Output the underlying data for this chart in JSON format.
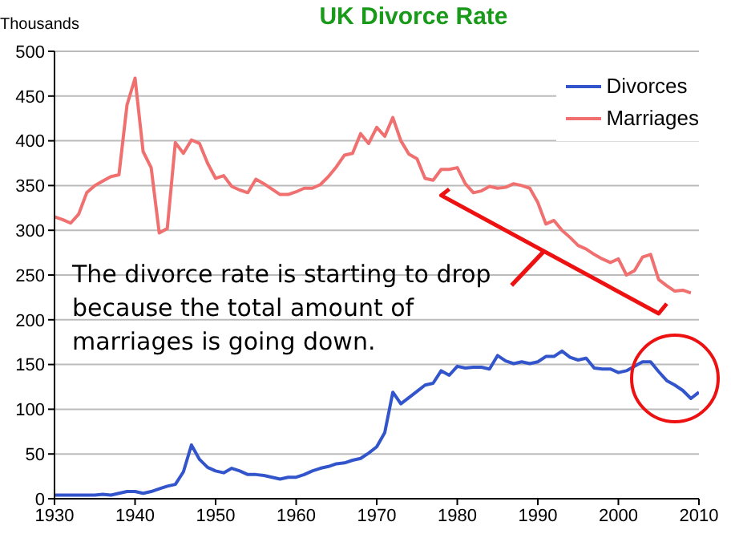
{
  "chart_data": {
    "type": "line",
    "title": "UK Divorce Rate",
    "ylabel": "Thousands",
    "xlim": [
      1930,
      2010
    ],
    "xticks": [
      1930,
      1940,
      1950,
      1960,
      1970,
      1980,
      1990,
      2000,
      2010
    ],
    "ylim": [
      0,
      500
    ],
    "yticks": [
      0,
      50,
      100,
      150,
      200,
      250,
      300,
      350,
      400,
      450,
      500
    ],
    "grid": "y",
    "legend": "top right",
    "marker": "none",
    "line_style": "solid",
    "annotations": [
      "The divorce rate is starting to drop because the total amount of marriages is going down."
    ],
    "series": [
      {
        "name": "Divorces",
        "color": "#3355cc",
        "x": [
          1930,
          1931,
          1932,
          1933,
          1934,
          1935,
          1936,
          1937,
          1938,
          1939,
          1940,
          1941,
          1942,
          1943,
          1944,
          1945,
          1946,
          1947,
          1948,
          1949,
          1950,
          1951,
          1952,
          1953,
          1954,
          1955,
          1956,
          1957,
          1958,
          1959,
          1960,
          1961,
          1962,
          1963,
          1964,
          1965,
          1966,
          1967,
          1968,
          1969,
          1970,
          1971,
          1972,
          1973,
          1974,
          1975,
          1976,
          1977,
          1978,
          1979,
          1980,
          1981,
          1982,
          1983,
          1984,
          1985,
          1986,
          1987,
          1988,
          1989,
          1990,
          1991,
          1992,
          1993,
          1994,
          1995,
          1996,
          1997,
          1998,
          1999,
          2000,
          2001,
          2002,
          2003,
          2004,
          2005,
          2006,
          2007,
          2008,
          2009,
          2010
        ],
        "values": [
          4,
          4,
          4,
          4,
          4,
          4,
          5,
          4,
          6,
          8,
          8,
          6,
          8,
          11,
          14,
          16,
          30,
          60,
          44,
          35,
          31,
          29,
          34,
          31,
          27,
          27,
          26,
          24,
          22,
          24,
          24,
          27,
          31,
          34,
          36,
          39,
          40,
          43,
          45,
          51,
          58,
          74,
          119,
          106,
          113,
          120,
          127,
          129,
          143,
          138,
          148,
          146,
          147,
          147,
          145,
          160,
          154,
          151,
          153,
          151,
          153,
          159,
          159,
          165,
          158,
          155,
          157,
          146,
          145,
          145,
          141,
          143,
          148,
          153,
          153,
          142,
          132,
          127,
          121,
          112,
          119
        ]
      },
      {
        "name": "Marriages",
        "color": "#f07070",
        "x": [
          1930,
          1931,
          1932,
          1933,
          1934,
          1935,
          1936,
          1937,
          1938,
          1939,
          1940,
          1941,
          1942,
          1943,
          1944,
          1945,
          1946,
          1947,
          1948,
          1949,
          1950,
          1951,
          1952,
          1953,
          1954,
          1955,
          1956,
          1957,
          1958,
          1959,
          1960,
          1961,
          1962,
          1963,
          1964,
          1965,
          1966,
          1967,
          1968,
          1969,
          1970,
          1971,
          1972,
          1973,
          1974,
          1975,
          1976,
          1977,
          1978,
          1979,
          1980,
          1981,
          1982,
          1983,
          1984,
          1985,
          1986,
          1987,
          1988,
          1989,
          1990,
          1991,
          1992,
          1993,
          1994,
          1995,
          1996,
          1997,
          1998,
          1999,
          2000,
          2001,
          2002,
          2003,
          2004,
          2005,
          2006,
          2007,
          2008,
          2009
        ],
        "values": [
          315,
          312,
          308,
          318,
          342,
          350,
          355,
          360,
          362,
          440,
          470,
          388,
          370,
          297,
          302,
          398,
          386,
          401,
          397,
          375,
          358,
          361,
          349,
          345,
          342,
          357,
          352,
          346,
          340,
          340,
          343,
          347,
          347,
          351,
          360,
          371,
          384,
          386,
          408,
          397,
          415,
          405,
          426,
          400,
          385,
          380,
          358,
          356,
          368,
          368,
          370,
          352,
          342,
          344,
          349,
          347,
          348,
          352,
          350,
          347,
          331,
          307,
          311,
          300,
          292,
          283,
          279,
          273,
          268,
          264,
          268,
          250,
          255,
          270,
          273,
          245,
          238,
          232,
          233,
          230
        ]
      },
      {
        "type": "line",
        "color": "#ee1111",
        "x": [
          1979,
          1978,
          2005,
          2006
        ],
        "values": [
          346,
          339,
          207,
          218
        ]
      }
    ]
  }
}
